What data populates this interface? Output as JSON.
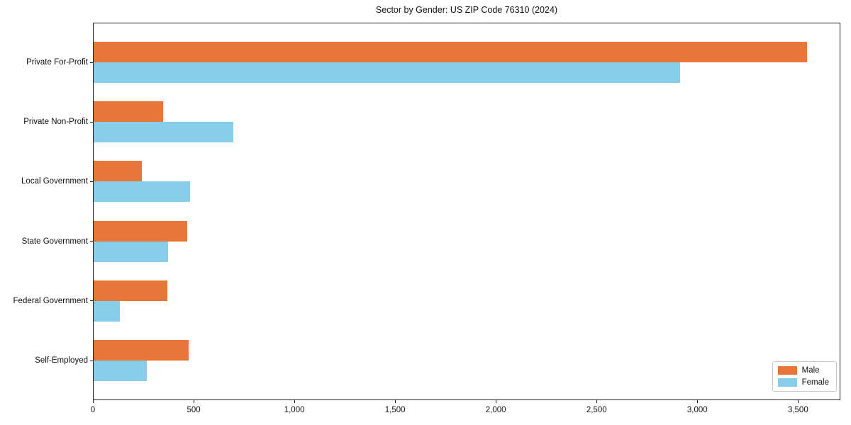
{
  "chart_data": {
    "type": "bar",
    "orientation": "horizontal",
    "title": "Sector by Gender: US ZIP Code 76310 (2024)",
    "categories": [
      "Private For-Profit",
      "Private Non-Profit",
      "Local Government",
      "State Government",
      "Federal Government",
      "Self-Employed"
    ],
    "series": [
      {
        "name": "Male",
        "color": "#e8763a",
        "values": [
          3540,
          345,
          240,
          465,
          365,
          470
        ]
      },
      {
        "name": "Female",
        "color": "#87ceeb",
        "values": [
          2910,
          695,
          480,
          370,
          130,
          265
        ]
      }
    ],
    "xlabel": "",
    "ylabel": "",
    "xlim": [
      0,
      3710
    ],
    "x_ticks": [
      0,
      500,
      1000,
      1500,
      2000,
      2500,
      3000,
      3500
    ],
    "x_tick_labels": [
      "0",
      "500",
      "1,000",
      "1,500",
      "2,000",
      "2,500",
      "3,000",
      "3,500"
    ],
    "grid": false,
    "legend_position": "lower right",
    "axis_color": "#1a1a1a",
    "background_color": "#ffffff"
  }
}
